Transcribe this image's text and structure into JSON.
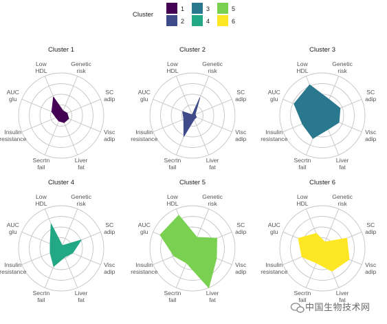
{
  "legend": {
    "title": "Cluster",
    "entries": [
      {
        "label": "1",
        "color": "#440154"
      },
      {
        "label": "2",
        "color": "#3e4a89"
      },
      {
        "label": "3",
        "color": "#2a788e"
      },
      {
        "label": "4",
        "color": "#22a884"
      },
      {
        "label": "5",
        "color": "#7ad151"
      },
      {
        "label": "6",
        "color": "#fde725"
      }
    ]
  },
  "chart_data": {
    "type": "radar",
    "axes": [
      [
        "Genetic",
        "risk"
      ],
      [
        "SC",
        "adip"
      ],
      [
        "Visc",
        "adip"
      ],
      [
        "Liver",
        "fat"
      ],
      [
        "Secrtn",
        "fail"
      ],
      [
        "Insulin",
        "resistance"
      ],
      [
        "AUC",
        "glu"
      ],
      [
        "Low",
        "HDL"
      ]
    ],
    "rings": 4,
    "grid": true,
    "panels": [
      {
        "title": "Cluster 1",
        "color": "#440154",
        "values": [
          0.12,
          0.15,
          0.19,
          0.18,
          0.14,
          0.13,
          0.24,
          0.47
        ]
      },
      {
        "title": "Cluster 2",
        "color": "#3e4a89",
        "values": [
          0.45,
          0.07,
          0.1,
          0.1,
          0.53,
          0.22,
          0.25,
          0.02
        ]
      },
      {
        "title": "Cluster 3",
        "color": "#2a788e",
        "values": [
          0.41,
          0.45,
          0.42,
          0.35,
          0.58,
          0.51,
          0.72,
          0.78
        ]
      },
      {
        "title": "Cluster 4",
        "color": "#22a884",
        "values": [
          0.07,
          0.51,
          0.29,
          0.22,
          0.46,
          0.28,
          0.28,
          0.62
        ]
      },
      {
        "title": "Cluster 5",
        "color": "#7ad151",
        "values": [
          0.28,
          0.62,
          0.61,
          1.0,
          0.37,
          0.47,
          0.82,
          0.84
        ]
      },
      {
        "title": "Cluster 6",
        "color": "#fde725",
        "values": [
          0.16,
          0.62,
          0.68,
          0.58,
          0.37,
          0.52,
          0.61,
          0.38
        ]
      }
    ]
  },
  "watermark": {
    "text": "中国生物技术网"
  }
}
